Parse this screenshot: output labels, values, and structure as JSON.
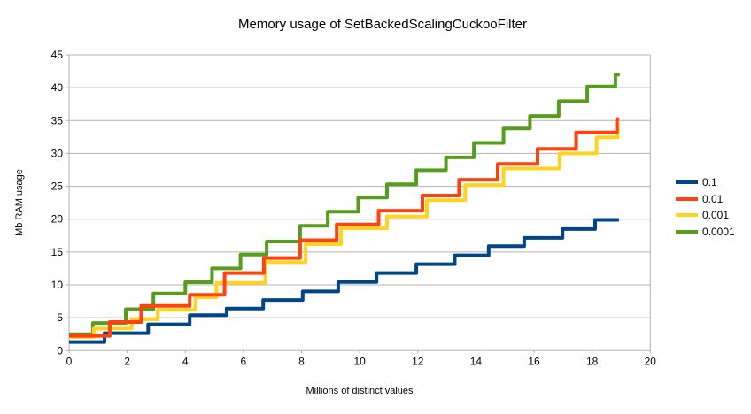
{
  "title": "Memory usage of SetBackedScalingCuckooFilter",
  "x_axis": {
    "label": "Millions of distinct values"
  },
  "y_axis": {
    "label": "Mb RAM usage"
  },
  "palette": {
    "grid": "#b3b3b3",
    "axis": "#b3b3b3",
    "text": "#000000",
    "background": "#ffffff"
  },
  "chart_data": {
    "type": "line",
    "subtype": "step-staircase",
    "title": "Memory usage of SetBackedScalingCuckooFilter",
    "xlabel": "Millions of distinct values",
    "ylabel": "Mb RAM usage",
    "xlim": [
      0,
      20
    ],
    "ylim": [
      0,
      45
    ],
    "x_ticks": [
      0,
      2,
      4,
      6,
      8,
      10,
      12,
      14,
      16,
      18,
      20
    ],
    "y_ticks": [
      0,
      5,
      10,
      15,
      20,
      25,
      30,
      35,
      40,
      45
    ],
    "grid": "horizontal",
    "legend_position": "right",
    "legend_order": [
      "0.1",
      "0.01",
      "0.001",
      "0.0001"
    ],
    "series": [
      {
        "name": "0.1",
        "color": "#004586",
        "start": [
          0,
          1.3
        ],
        "steps": [
          [
            1.22,
            2.65
          ],
          [
            2.72,
            4.0
          ],
          [
            4.15,
            5.4
          ],
          [
            5.42,
            6.4
          ],
          [
            6.68,
            7.7
          ],
          [
            8.04,
            9.0
          ],
          [
            9.26,
            10.45
          ],
          [
            10.58,
            11.8
          ],
          [
            11.95,
            13.15
          ],
          [
            13.27,
            14.5
          ],
          [
            14.44,
            15.9
          ],
          [
            15.66,
            17.15
          ],
          [
            16.98,
            18.5
          ],
          [
            18.1,
            19.9
          ]
        ],
        "end_x": 18.92,
        "final_value": 19.9
      },
      {
        "name": "0.01",
        "color": "#ff420e",
        "start": [
          0,
          2.25
        ],
        "steps": [
          [
            1.4,
            4.35
          ],
          [
            2.48,
            6.8
          ],
          [
            4.15,
            8.5
          ],
          [
            5.35,
            11.8
          ],
          [
            6.7,
            14.1
          ],
          [
            7.95,
            16.8
          ],
          [
            9.21,
            19.2
          ],
          [
            10.65,
            21.3
          ],
          [
            12.16,
            23.6
          ],
          [
            13.42,
            26.0
          ],
          [
            14.75,
            28.4
          ],
          [
            16.12,
            30.7
          ],
          [
            17.45,
            33.2
          ],
          [
            18.85,
            35.2
          ]
        ],
        "end_x": 18.93,
        "final_value": 35.2
      },
      {
        "name": "0.001",
        "color": "#ffd320",
        "start": [
          0,
          2.05
        ],
        "steps": [
          [
            0.85,
            3.35
          ],
          [
            2.15,
            4.75
          ],
          [
            3.05,
            6.2
          ],
          [
            4.35,
            8.1
          ],
          [
            5.07,
            10.3
          ],
          [
            6.75,
            13.45
          ],
          [
            8.14,
            16.2
          ],
          [
            9.36,
            18.6
          ],
          [
            10.94,
            20.4
          ],
          [
            12.31,
            22.9
          ],
          [
            13.63,
            25.2
          ],
          [
            14.95,
            27.7
          ],
          [
            16.88,
            30.0
          ],
          [
            18.15,
            32.45
          ],
          [
            18.88,
            34.6
          ]
        ],
        "end_x": 18.93,
        "final_value": 34.6
      },
      {
        "name": "0.0001",
        "color": "#579d1c",
        "start": [
          0,
          2.5
        ],
        "steps": [
          [
            0.82,
            4.2
          ],
          [
            1.95,
            6.3
          ],
          [
            2.9,
            8.7
          ],
          [
            4.0,
            10.4
          ],
          [
            4.92,
            12.5
          ],
          [
            5.9,
            14.6
          ],
          [
            6.8,
            16.6
          ],
          [
            7.95,
            19.0
          ],
          [
            8.9,
            21.15
          ],
          [
            9.95,
            23.3
          ],
          [
            10.94,
            25.3
          ],
          [
            11.95,
            27.45
          ],
          [
            12.97,
            29.4
          ],
          [
            13.93,
            31.6
          ],
          [
            14.95,
            33.8
          ],
          [
            15.86,
            35.7
          ],
          [
            16.85,
            37.95
          ],
          [
            17.83,
            40.2
          ],
          [
            18.8,
            42.0
          ]
        ],
        "end_x": 18.95,
        "final_value": 42.0
      }
    ],
    "draw_order": [
      "0.1",
      "0.0001",
      "0.001",
      "0.01"
    ]
  }
}
